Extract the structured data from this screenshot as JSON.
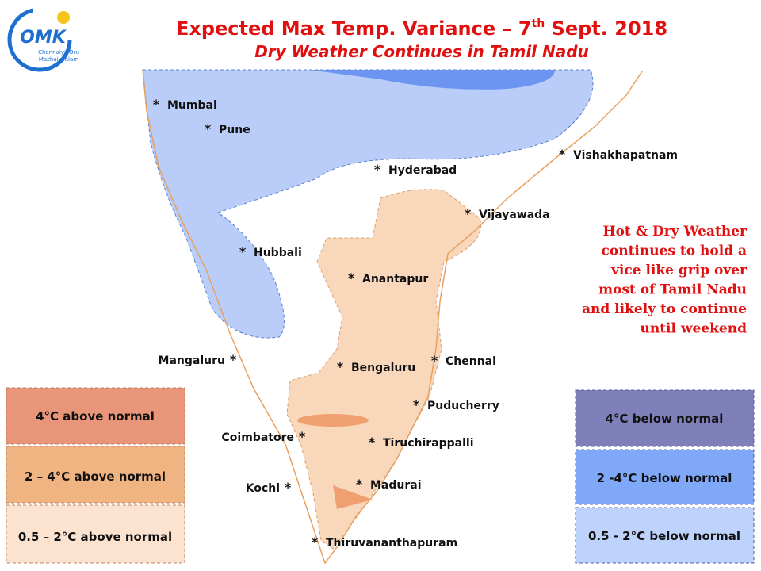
{
  "logo": {
    "mark": "OMK",
    "lines": [
      "Chennaiyil Oru",
      "Mazhaikaalam"
    ]
  },
  "header": {
    "title": [
      "Expected Max Temp. Variance – 7",
      "th",
      " Sept. 2018"
    ],
    "subtitle": "Dry Weather Continues in Tamil Nadu"
  },
  "map": {
    "cities": [
      "Mumbai",
      "Pune",
      "Hyderabad",
      "Vishakhapatnam",
      "Vijayawada",
      "Hubbali",
      "Anantapur",
      "Mangaluru",
      "Bengaluru",
      "Chennai",
      "Puducherry",
      "Coimbatore",
      "Tiruchirappalli",
      "Kochi",
      "Madurai",
      "Thiruvananthapuram"
    ],
    "marker": "*"
  },
  "note": [
    "Hot & Dry Weather",
    "continues to hold a",
    "vice like grip over",
    "most of Tamil Nadu",
    "and likely to continue",
    "until weekend"
  ],
  "legend": {
    "above": [
      "4°C above normal",
      "2 – 4°C above normal",
      "0.5 – 2°C above normal"
    ],
    "below": [
      "4°C  below normal",
      "2 -4°C below normal",
      "0.5 - 2°C below normal"
    ]
  }
}
